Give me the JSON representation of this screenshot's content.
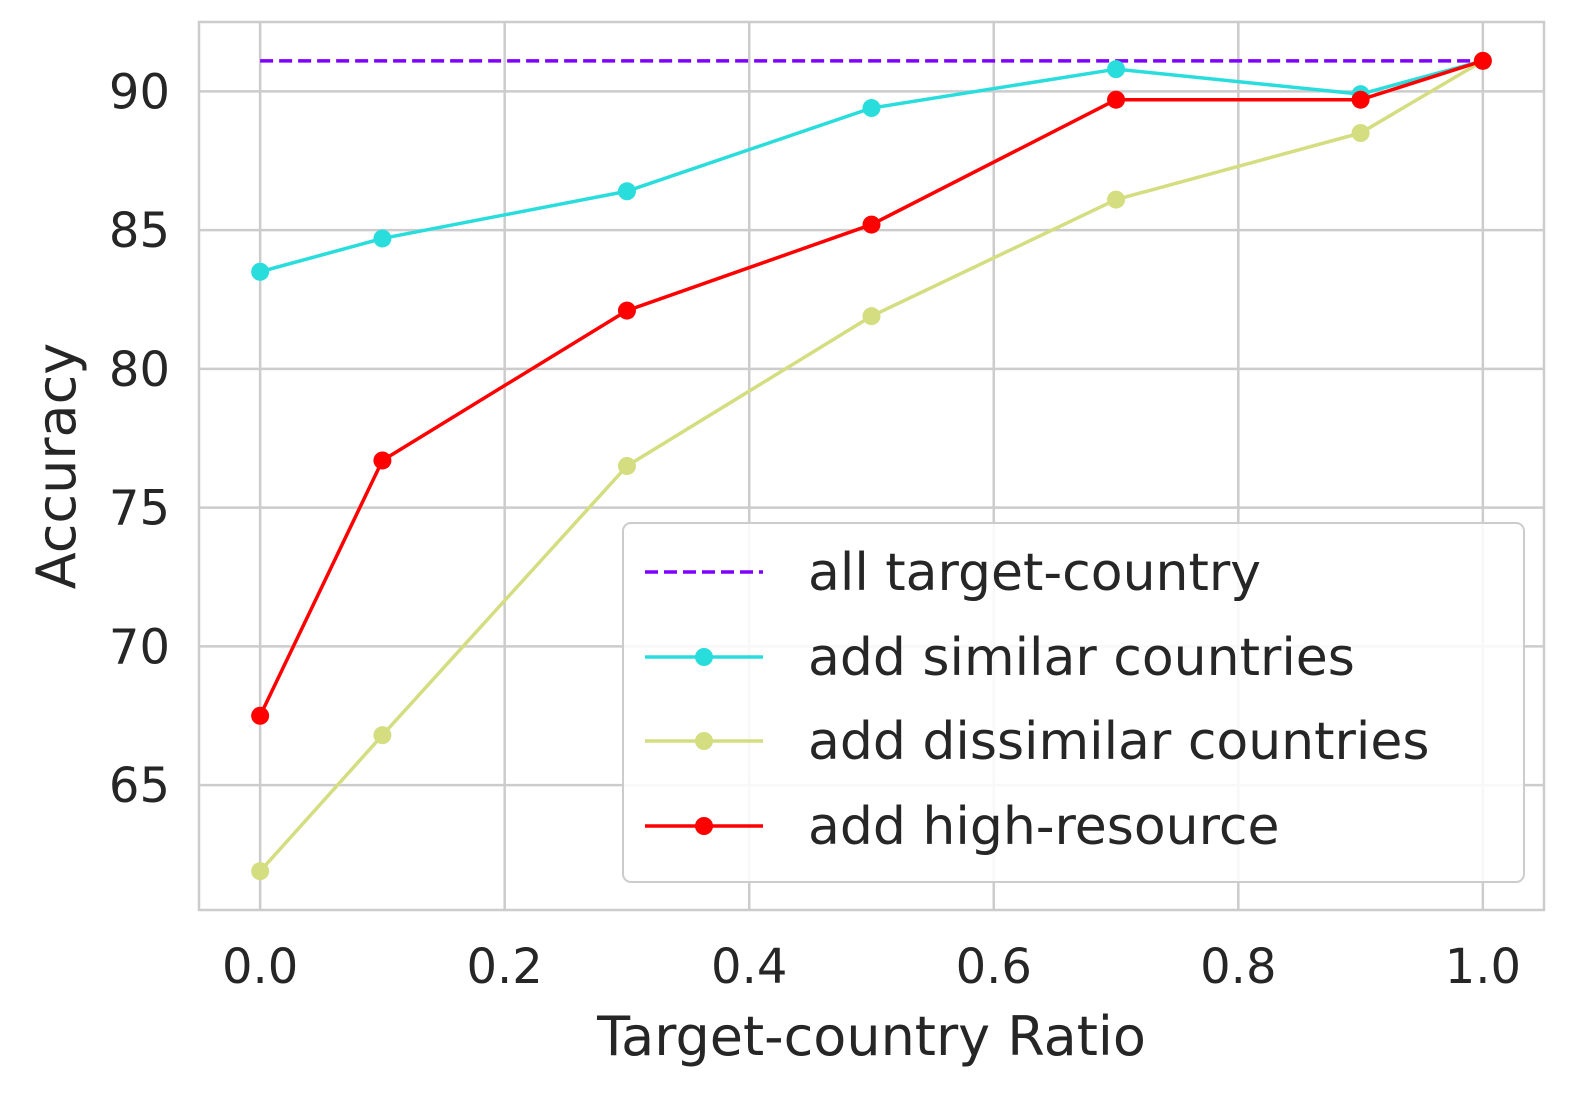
{
  "chart_data": {
    "type": "line",
    "xlabel": "Target-country Ratio",
    "ylabel": "Accuracy",
    "xlim": [
      -0.05,
      1.05
    ],
    "ylim": [
      60.5,
      92.5
    ],
    "x_ticks": [
      "0.0",
      "0.2",
      "0.4",
      "0.6",
      "0.8",
      "1.0"
    ],
    "x_tick_values": [
      0.0,
      0.2,
      0.4,
      0.6,
      0.8,
      1.0
    ],
    "y_ticks": [
      "65",
      "70",
      "75",
      "80",
      "85",
      "90"
    ],
    "y_tick_values": [
      65,
      70,
      75,
      80,
      85,
      90
    ],
    "grid": true,
    "legend_position": "lower-right",
    "x": [
      0.0,
      0.1,
      0.3,
      0.5,
      0.7,
      0.9,
      1.0
    ],
    "series": [
      {
        "name": "all target-country",
        "style": "dashed",
        "color": "#8000ff",
        "x": [
          0.0,
          1.0
        ],
        "values": [
          91.1,
          91.1
        ]
      },
      {
        "name": "add similar countries",
        "style": "line-marker",
        "color": "#2adddd",
        "values": [
          83.5,
          84.7,
          86.4,
          89.4,
          90.8,
          89.9,
          91.1
        ]
      },
      {
        "name": "add dissimilar countries",
        "style": "line-marker",
        "color": "#d4dd80",
        "values": [
          61.9,
          66.8,
          76.5,
          81.9,
          86.1,
          88.5,
          91.1
        ]
      },
      {
        "name": "add high-resource",
        "style": "line-marker",
        "color": "#ff0000",
        "values": [
          67.5,
          76.7,
          82.1,
          85.2,
          89.7,
          89.7,
          91.1
        ]
      }
    ]
  }
}
